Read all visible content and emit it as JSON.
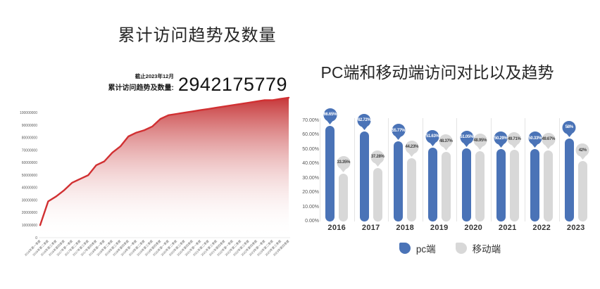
{
  "left_chart": {
    "title": "累计访问趋势及数量",
    "kpi_date": "截止2023年12月",
    "kpi_label": "累计访问趋势及数量:",
    "kpi_value": "2942175779"
  },
  "right_chart": {
    "title": "PC端和移动端访问对比以及趋势"
  },
  "chart_data": [
    {
      "type": "area",
      "title": "累计访问趋势及数量",
      "annotation": "截止2023年12月 累计访问趋势及数量: 2942175779",
      "line_color": "#d13032",
      "area_top_color": "#c42f31",
      "ylim": [
        0,
        112000000
      ],
      "ytick_labels": [
        "0",
        "10000000",
        "20000000",
        "30000000",
        "40000000",
        "50000000",
        "60000000",
        "70000000",
        "80000000",
        "90000000",
        "100000000"
      ],
      "x": [
        "2016年第一季度",
        "2016年第二季度",
        "2016年第三季度",
        "2016年第四季度",
        "2017年第一季度",
        "2017年第二季度",
        "2017年第三季度",
        "2017年第四季度",
        "2018年第一季度",
        "2018年第二季度",
        "2018年第三季度",
        "2018年第四季度",
        "2019年第一季度",
        "2019年第二季度",
        "2019年第三季度",
        "2019年第四季度",
        "2020年第一季度",
        "2020年第二季度",
        "2020年第三季度",
        "2020年第四季度",
        "2021年第一季度",
        "2021年第二季度",
        "2021年第三季度",
        "2021年第四季度",
        "2022年第一季度",
        "2022年第二季度",
        "2022年第三季度",
        "2022年第四季度",
        "2023年第一季度",
        "2023年第二季度",
        "2023年第三季度",
        "2023年第四季度"
      ],
      "values": [
        10000000,
        29000000,
        33000000,
        38000000,
        44000000,
        47000000,
        50000000,
        58000000,
        61000000,
        68000000,
        73000000,
        81000000,
        84000000,
        86000000,
        89000000,
        95000000,
        98000000,
        99000000,
        100000000,
        101000000,
        102000000,
        103000000,
        104000000,
        105000000,
        106000000,
        107000000,
        108000000,
        109000000,
        110000000,
        110000000,
        111000000,
        112000000
      ]
    },
    {
      "type": "bar",
      "title": "PC端和移动端访问对比以及趋势",
      "categories": [
        "2016",
        "2017",
        "2018",
        "2019",
        "2020",
        "2021",
        "2022",
        "2023"
      ],
      "series": [
        {
          "name": "pc端",
          "color": "#4a73b7",
          "label_text_color": "#ffffff",
          "values": [
            66.65,
            62.72,
            55.77,
            51.63,
            51.05,
            50.29,
            50.33,
            58
          ],
          "labels": [
            "66.65%",
            "62.72%",
            "55.77%",
            "51.63%",
            "51.05%",
            "50.29%",
            "50.33%",
            "58%"
          ]
        },
        {
          "name": "移动端",
          "color": "#d8d8d8",
          "label_text_color": "#3f3f3f",
          "values": [
            33.35,
            37.28,
            44.23,
            48.37,
            48.95,
            49.71,
            49.67,
            42
          ],
          "labels": [
            "33.35%",
            "37.28%",
            "44.23%",
            "48.37%",
            "48.95%",
            "49.71%",
            "49.67%",
            "42%"
          ]
        }
      ],
      "ylim": [
        0,
        70
      ],
      "ytick_labels": [
        "0.00%",
        "10.00%",
        "20.00%",
        "30.00%",
        "40.00%",
        "50.00%",
        "60.00%",
        "70.00%"
      ],
      "grid": "vertical-dividers",
      "legend_position": "bottom"
    }
  ]
}
